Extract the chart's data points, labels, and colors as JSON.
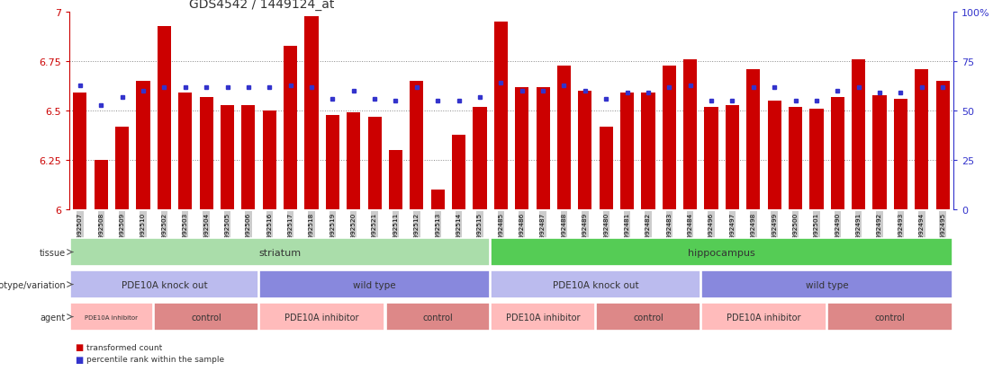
{
  "title": "GDS4542 / 1449124_at",
  "samples": [
    "GSM992507",
    "GSM992508",
    "GSM992509",
    "GSM992510",
    "GSM992502",
    "GSM992503",
    "GSM992504",
    "GSM992505",
    "GSM992506",
    "GSM992516",
    "GSM992517",
    "GSM992518",
    "GSM992519",
    "GSM992520",
    "GSM992521",
    "GSM992511",
    "GSM992512",
    "GSM992513",
    "GSM992514",
    "GSM992515",
    "GSM992485",
    "GSM992486",
    "GSM992487",
    "GSM992488",
    "GSM992489",
    "GSM992480",
    "GSM992481",
    "GSM992482",
    "GSM992483",
    "GSM992484",
    "GSM992496",
    "GSM992497",
    "GSM992498",
    "GSM992499",
    "GSM992500",
    "GSM992501",
    "GSM992490",
    "GSM992491",
    "GSM992492",
    "GSM992493",
    "GSM992494",
    "GSM992495"
  ],
  "bar_values": [
    6.59,
    6.25,
    6.42,
    6.65,
    6.93,
    6.59,
    6.57,
    6.53,
    6.53,
    6.5,
    6.83,
    6.98,
    6.48,
    6.49,
    6.47,
    6.3,
    6.65,
    6.1,
    6.38,
    6.52,
    6.95,
    6.62,
    6.62,
    6.73,
    6.6,
    6.42,
    6.59,
    6.59,
    6.73,
    6.76,
    6.52,
    6.53,
    6.71,
    6.55,
    6.52,
    6.51,
    6.57,
    6.76,
    6.58,
    6.56,
    6.71,
    6.65
  ],
  "percentile_values": [
    63,
    53,
    57,
    60,
    62,
    62,
    62,
    62,
    62,
    62,
    63,
    62,
    56,
    60,
    56,
    55,
    62,
    55,
    55,
    57,
    64,
    60,
    60,
    63,
    60,
    56,
    59,
    59,
    62,
    63,
    55,
    55,
    62,
    62,
    55,
    55,
    60,
    62,
    59,
    59,
    62,
    62
  ],
  "ymin": 6.0,
  "ymax": 7.0,
  "yticks": [
    6.0,
    6.25,
    6.5,
    6.75,
    7.0
  ],
  "ytick_labels": [
    "6",
    "6.25",
    "6.5",
    "6.75",
    "7"
  ],
  "right_yticks": [
    0,
    25,
    50,
    75,
    100
  ],
  "right_ytick_labels": [
    "0",
    "25",
    "50",
    "75",
    "100%"
  ],
  "bar_color": "#cc0000",
  "dot_color": "#3333cc",
  "axis_color_left": "#cc0000",
  "axis_color_right": "#3333cc",
  "grid_color": "#888888",
  "tick_bg_color": "#cccccc",
  "tissue_groups": [
    {
      "label": "striatum",
      "start": 0,
      "end": 19,
      "color": "#aaddaa"
    },
    {
      "label": "hippocampus",
      "start": 20,
      "end": 41,
      "color": "#55cc55"
    }
  ],
  "genotype_groups": [
    {
      "label": "PDE10A knock out",
      "start": 0,
      "end": 8,
      "color": "#bbbbee"
    },
    {
      "label": "wild type",
      "start": 9,
      "end": 19,
      "color": "#8888dd"
    },
    {
      "label": "PDE10A knock out",
      "start": 20,
      "end": 29,
      "color": "#bbbbee"
    },
    {
      "label": "wild type",
      "start": 30,
      "end": 41,
      "color": "#8888dd"
    }
  ],
  "agent_groups": [
    {
      "label": "PDE10A inhibitor",
      "start": 0,
      "end": 3,
      "color": "#ffbbbb",
      "small": true
    },
    {
      "label": "control",
      "start": 4,
      "end": 8,
      "color": "#dd8888",
      "small": false
    },
    {
      "label": "PDE10A inhibitor",
      "start": 9,
      "end": 14,
      "color": "#ffbbbb",
      "small": false
    },
    {
      "label": "control",
      "start": 15,
      "end": 19,
      "color": "#dd8888",
      "small": false
    },
    {
      "label": "PDE10A inhibitor",
      "start": 20,
      "end": 24,
      "color": "#ffbbbb",
      "small": false
    },
    {
      "label": "control",
      "start": 25,
      "end": 29,
      "color": "#dd8888",
      "small": false
    },
    {
      "label": "PDE10A inhibitor",
      "start": 30,
      "end": 35,
      "color": "#ffbbbb",
      "small": false
    },
    {
      "label": "control",
      "start": 36,
      "end": 41,
      "color": "#dd8888",
      "small": false
    }
  ],
  "row_labels": [
    "tissue",
    "genotype/variation",
    "agent"
  ],
  "legend_items": [
    {
      "label": "transformed count",
      "color": "#cc0000"
    },
    {
      "label": "percentile rank within the sample",
      "color": "#3333cc"
    }
  ]
}
